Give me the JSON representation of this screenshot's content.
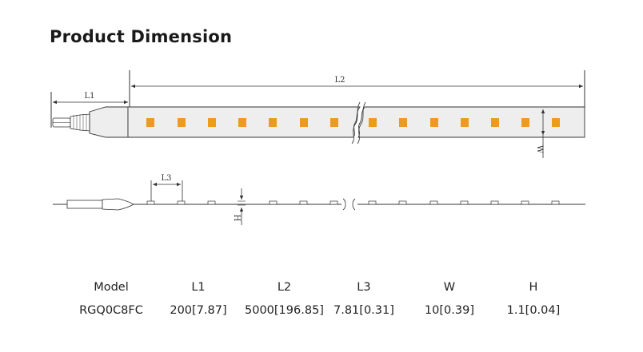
{
  "title": "Product Dimension",
  "diagram": {
    "top_view_labels": {
      "l1": "L1",
      "l2": "L2",
      "w": "W"
    },
    "side_view_labels": {
      "l3": "L3",
      "h": "H"
    },
    "led_color": "#ee9a1f",
    "strip_color": "#eeeeee",
    "line_color": "#333333"
  },
  "spec_table": {
    "headers": [
      "Model",
      "L1",
      "L2",
      "L3",
      "W",
      "H"
    ],
    "rows": [
      [
        "RGQ0C8FC",
        "200[7.87]",
        "5000[196.85]",
        "7.81[0.31]",
        "10[0.39]",
        "1.1[0.04]"
      ]
    ]
  }
}
